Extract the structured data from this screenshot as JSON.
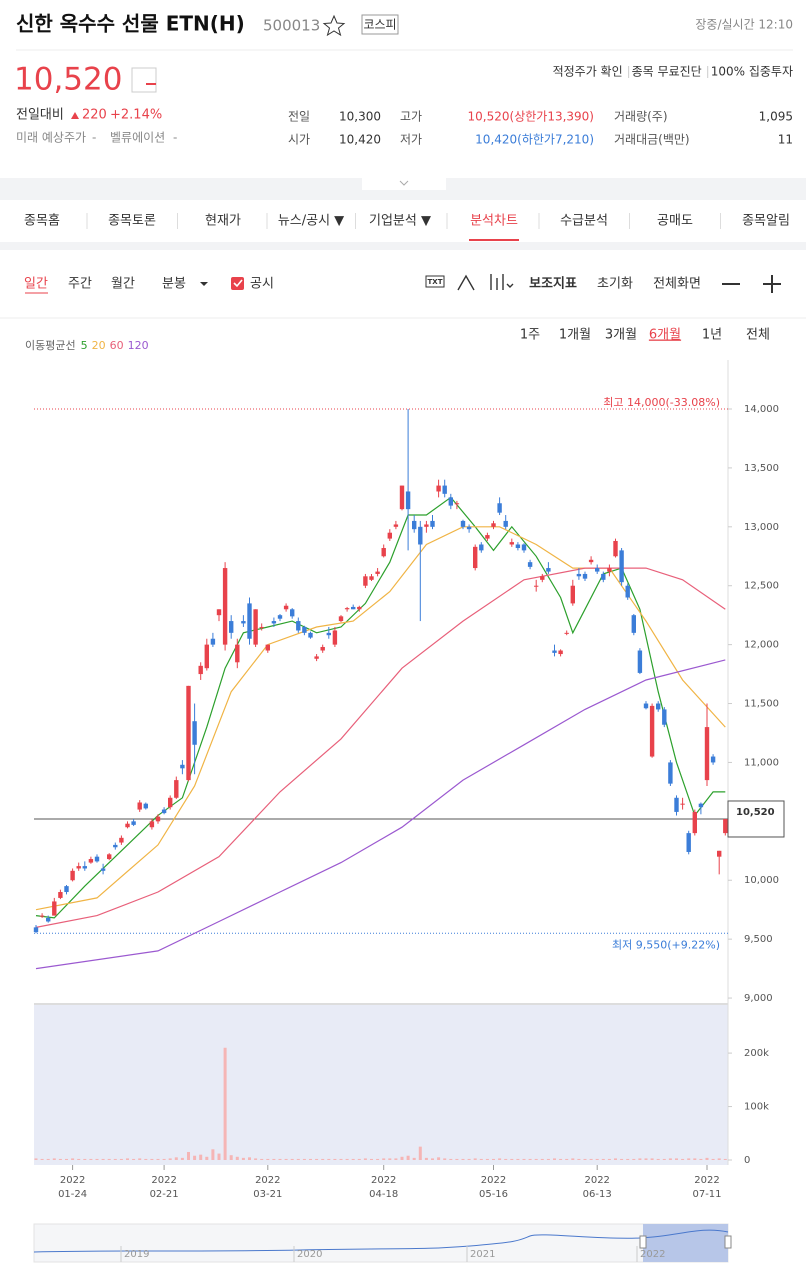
{
  "header": {
    "title": "신한 옥수수 선물 ETN(H)",
    "code": "500013",
    "market": "코스피",
    "status": "장중/실시간 12:10"
  },
  "quote": {
    "price": "10,520",
    "links": [
      "적정주가 확인",
      "종목 무료진단",
      "100% 집중투자"
    ],
    "change_label": "전일대비",
    "change": "220",
    "change_pct": "+2.14%",
    "future_label": "미래 예상주가",
    "future_value": "-",
    "valuation_label": "벨류에이션",
    "valuation_value": "-",
    "table": [
      [
        "전일",
        "10,300",
        "고가",
        "10,520(상한가13,390)",
        "거래량(주)",
        "1,095"
      ],
      [
        "시가",
        "10,420",
        "저가",
        "10,420(하한가7,210)",
        "거래대금(백만)",
        "11"
      ]
    ]
  },
  "tabs": [
    "종목홈",
    "종목토론",
    "현재가",
    "뉴스/공시 ▼",
    "기업분석 ▼",
    "분석차트",
    "수급분석",
    "공매도",
    "종목알림"
  ],
  "toolbar": {
    "left": [
      "일간",
      "주간",
      "월간",
      "분봉"
    ],
    "notice": "공시",
    "right": [
      "보조지표",
      "초기화",
      "전체화면"
    ]
  },
  "periods": [
    "1주",
    "1개월",
    "3개월",
    "6개월",
    "1년",
    "전체"
  ],
  "nav_years": [
    "2019",
    "2020",
    "2021",
    "2022"
  ],
  "chart_data": {
    "type": "candlestick",
    "ma_label": "이동평균선",
    "candles": [
      [
        9600,
        9620,
        9550,
        9560
      ],
      [
        9700,
        9720,
        9680,
        9700
      ],
      [
        9680,
        9700,
        9640,
        9650
      ],
      [
        9700,
        9850,
        9700,
        9820
      ],
      [
        9850,
        9920,
        9840,
        9900
      ],
      [
        9950,
        9960,
        9880,
        9900
      ],
      [
        10000,
        10100,
        9990,
        10080
      ],
      [
        10100,
        10150,
        10080,
        10120
      ],
      [
        10120,
        10160,
        10080,
        10100
      ],
      [
        10150,
        10200,
        10140,
        10180
      ],
      [
        10200,
        10220,
        10150,
        10160
      ],
      [
        10100,
        10140,
        10050,
        10080
      ],
      [
        10180,
        10230,
        10170,
        10220
      ],
      [
        10300,
        10320,
        10260,
        10280
      ],
      [
        10320,
        10380,
        10300,
        10360
      ],
      [
        10450,
        10500,
        10440,
        10480
      ],
      [
        10500,
        10520,
        10460,
        10470
      ],
      [
        10600,
        10680,
        10580,
        10660
      ],
      [
        10650,
        10660,
        10600,
        10610
      ],
      [
        10450,
        10520,
        10430,
        10500
      ],
      [
        10500,
        10560,
        10480,
        10540
      ],
      [
        10600,
        10620,
        10560,
        10570
      ],
      [
        10620,
        10720,
        10600,
        10700
      ],
      [
        10700,
        10880,
        10690,
        10850
      ],
      [
        10980,
        11020,
        10900,
        10950
      ],
      [
        10850,
        11650,
        10840,
        11650
      ],
      [
        11350,
        11500,
        10900,
        11150
      ],
      [
        11750,
        11850,
        11700,
        11820
      ],
      [
        11800,
        12050,
        11780,
        12000
      ],
      [
        12050,
        12100,
        11980,
        12000
      ],
      [
        12250,
        12300,
        12200,
        12300
      ],
      [
        12000,
        12700,
        11950,
        12650
      ],
      [
        12200,
        12250,
        12050,
        12100
      ],
      [
        11850,
        12050,
        11800,
        12000
      ],
      [
        12200,
        12250,
        12150,
        12180
      ],
      [
        12350,
        12400,
        12000,
        12050
      ],
      [
        12000,
        12300,
        11980,
        12300
      ],
      [
        12150,
        12180,
        12120,
        12150
      ],
      [
        11950,
        12000,
        11930,
        12000
      ],
      [
        12200,
        12230,
        12150,
        12180
      ],
      [
        12250,
        12260,
        12200,
        12220
      ],
      [
        12300,
        12350,
        12280,
        12330
      ],
      [
        12300,
        12310,
        12220,
        12240
      ],
      [
        12200,
        12230,
        12100,
        12120
      ],
      [
        12150,
        12160,
        12080,
        12100
      ],
      [
        12100,
        12110,
        12050,
        12060
      ],
      [
        11880,
        11920,
        11860,
        11900
      ],
      [
        11950,
        12000,
        11930,
        11980
      ],
      [
        12100,
        12150,
        12050,
        12080
      ],
      [
        12000,
        12150,
        11980,
        12120
      ],
      [
        12200,
        12250,
        12190,
        12240
      ],
      [
        12300,
        12320,
        12280,
        12310
      ],
      [
        12320,
        12340,
        12300,
        12300
      ],
      [
        12300,
        12330,
        12280,
        12320
      ],
      [
        12500,
        12600,
        12480,
        12580
      ],
      [
        12550,
        12600,
        12540,
        12580
      ],
      [
        12600,
        12650,
        12580,
        12620
      ],
      [
        12750,
        12850,
        12740,
        12820
      ],
      [
        12900,
        12980,
        12880,
        12950
      ],
      [
        13000,
        13050,
        12980,
        13020
      ],
      [
        13150,
        13350,
        13140,
        13350
      ],
      [
        13300,
        14000,
        12800,
        13150
      ],
      [
        13050,
        13100,
        12950,
        12980
      ],
      [
        13000,
        13050,
        12200,
        12850
      ],
      [
        13000,
        13050,
        12950,
        13020
      ],
      [
        13050,
        13100,
        12980,
        13000
      ],
      [
        13300,
        13400,
        13250,
        13350
      ],
      [
        13350,
        13400,
        13250,
        13280
      ],
      [
        13250,
        13280,
        13150,
        13180
      ],
      [
        13200,
        13220,
        13150,
        13200
      ],
      [
        13050,
        13060,
        12980,
        13000
      ],
      [
        13000,
        13020,
        12950,
        12980
      ],
      [
        12650,
        12850,
        12630,
        12830
      ],
      [
        12850,
        12870,
        12780,
        12800
      ],
      [
        12900,
        12950,
        12880,
        12930
      ],
      [
        13000,
        13050,
        12980,
        13030
      ],
      [
        13200,
        13250,
        13100,
        13120
      ],
      [
        13050,
        13100,
        12980,
        13000
      ],
      [
        12850,
        12900,
        12830,
        12870
      ],
      [
        12850,
        12870,
        12800,
        12820
      ],
      [
        12850,
        12860,
        12780,
        12800
      ],
      [
        12700,
        12720,
        12640,
        12660
      ],
      [
        12500,
        12550,
        12450,
        12500
      ],
      [
        12550,
        12600,
        12530,
        12580
      ],
      [
        12650,
        12700,
        12600,
        12620
      ],
      [
        11950,
        12000,
        11900,
        11930
      ],
      [
        11920,
        11960,
        11900,
        11950
      ],
      [
        12100,
        12120,
        12080,
        12100
      ],
      [
        12350,
        12550,
        12330,
        12500
      ],
      [
        12600,
        12650,
        12550,
        12580
      ],
      [
        12600,
        12620,
        12540,
        12560
      ],
      [
        12700,
        12750,
        12680,
        12720
      ],
      [
        12650,
        12680,
        12600,
        12620
      ],
      [
        12600,
        12620,
        12530,
        12550
      ],
      [
        12620,
        12680,
        12580,
        12650
      ],
      [
        12750,
        12900,
        12740,
        12880
      ],
      [
        12800,
        12820,
        12500,
        12530
      ],
      [
        12500,
        12520,
        12380,
        12400
      ],
      [
        12250,
        12260,
        12080,
        12100
      ],
      [
        11950,
        11970,
        11750,
        11760
      ],
      [
        11500,
        11520,
        11450,
        11460
      ],
      [
        11050,
        11500,
        11040,
        11480
      ],
      [
        11500,
        11520,
        11430,
        11450
      ],
      [
        11450,
        11470,
        11300,
        11320
      ],
      [
        11000,
        11020,
        10800,
        10820
      ],
      [
        10700,
        10720,
        10550,
        10580
      ],
      [
        10650,
        10700,
        10600,
        10650
      ],
      [
        10400,
        10420,
        10220,
        10240
      ],
      [
        10400,
        10600,
        10380,
        10580
      ],
      [
        10650,
        10660,
        10560,
        10620
      ],
      [
        10850,
        11500,
        10800,
        11300
      ],
      [
        11050,
        11070,
        10980,
        11000
      ],
      [
        10200,
        10250,
        10050,
        10250
      ],
      [
        10400,
        10520,
        10380,
        10520
      ]
    ],
    "up_color": "#e8424b",
    "down_color": "#3b7dd8",
    "series": [
      {
        "name": "5",
        "color": "#2ca02c",
        "x": [
          0,
          3,
          8,
          15,
          20,
          24,
          28,
          31,
          34,
          38,
          42,
          46,
          50,
          54,
          58,
          61,
          64,
          68,
          72,
          75,
          78,
          82,
          86,
          88,
          90,
          93,
          96,
          99,
          102,
          105,
          108,
          111,
          113
        ],
        "values": [
          9700,
          9680,
          9950,
          10300,
          10550,
          10700,
          11300,
          11800,
          12100,
          12150,
          12200,
          12100,
          12150,
          12350,
          12700,
          13100,
          13100,
          13250,
          13000,
          12800,
          13000,
          12750,
          12400,
          12100,
          12300,
          12600,
          12650,
          12300,
          11600,
          11000,
          10550,
          10750,
          10750
        ]
      },
      {
        "name": "20",
        "color": "#f0b445",
        "x": [
          0,
          10,
          20,
          26,
          32,
          38,
          46,
          52,
          58,
          64,
          70,
          76,
          82,
          88,
          94,
          100,
          106,
          113
        ],
        "values": [
          9750,
          9850,
          10300,
          10800,
          11600,
          12000,
          12150,
          12200,
          12450,
          12850,
          13000,
          13000,
          12850,
          12650,
          12650,
          12200,
          11700,
          11300
        ]
      },
      {
        "name": "60",
        "color": "#e8607a",
        "x": [
          0,
          10,
          20,
          30,
          40,
          50,
          60,
          70,
          80,
          90,
          100,
          106,
          113
        ],
        "values": [
          9600,
          9700,
          9900,
          10200,
          10750,
          11200,
          11800,
          12200,
          12550,
          12650,
          12650,
          12550,
          12300
        ]
      },
      {
        "name": "120",
        "color": "#9b59d0",
        "x": [
          0,
          20,
          30,
          40,
          50,
          60,
          70,
          80,
          90,
          100,
          113
        ],
        "values": [
          9250,
          9400,
          9650,
          9900,
          10150,
          10450,
          10850,
          11150,
          11450,
          11700,
          11870
        ]
      }
    ],
    "ylim": [
      8958,
      14416
    ],
    "yticks": [
      {
        "value": 9000,
        "label": "9,000"
      },
      {
        "value": 9500,
        "label": "9,500"
      },
      {
        "value": 10000,
        "label": "10,000"
      },
      {
        "value": 10500,
        "label": "10,500"
      },
      {
        "value": 11000,
        "label": "11,000"
      },
      {
        "value": 11500,
        "label": "11,500"
      },
      {
        "value": 12000,
        "label": "12,000"
      },
      {
        "value": 12500,
        "label": "12,500"
      },
      {
        "value": 13000,
        "label": "13,000"
      },
      {
        "value": 13500,
        "label": "13,500"
      },
      {
        "value": 14000,
        "label": "14,000"
      }
    ],
    "high": {
      "value": 14000,
      "label": "최고 14,000(-33.08%)"
    },
    "low": {
      "value": 9550,
      "label": "최저 9,550(+9.22%)"
    },
    "current": {
      "value": 10520,
      "label": "10,520"
    },
    "xticks": [
      {
        "index": 6,
        "year": "2022",
        "date": "01-24"
      },
      {
        "index": 21,
        "year": "2022",
        "date": "02-21"
      },
      {
        "index": 38,
        "year": "2022",
        "date": "03-21"
      },
      {
        "index": 57,
        "year": "2022",
        "date": "04-18"
      },
      {
        "index": 75,
        "year": "2022",
        "date": "05-16"
      },
      {
        "index": 92,
        "year": "2022",
        "date": "06-13"
      },
      {
        "index": 110,
        "year": "2022",
        "date": "07-11"
      }
    ],
    "volume": {
      "values": [
        3000,
        2000,
        2000,
        3000,
        2000,
        2000,
        3000,
        2000,
        2000,
        2000,
        2000,
        2000,
        2000,
        2000,
        2000,
        3000,
        2000,
        3000,
        2000,
        2000,
        2000,
        2000,
        3000,
        5000,
        4000,
        15000,
        8000,
        10000,
        6000,
        20000,
        12000,
        210000,
        9000,
        6000,
        4000,
        5000,
        3000,
        2000,
        2000,
        2000,
        2000,
        2000,
        2000,
        2000,
        2000,
        2000,
        2000,
        2000,
        2000,
        2000,
        2000,
        2000,
        2000,
        2000,
        3000,
        2000,
        2000,
        3000,
        3000,
        3000,
        6000,
        8000,
        4000,
        25000,
        4000,
        3000,
        5000,
        3000,
        2000,
        2000,
        2000,
        2000,
        3000,
        2000,
        2000,
        2000,
        3000,
        2000,
        2000,
        2000,
        2000,
        2000,
        2000,
        2000,
        2000,
        3000,
        2000,
        2000,
        3000,
        2000,
        2000,
        2000,
        2000,
        2000,
        2000,
        3000,
        2000,
        2000,
        2000,
        3000,
        3000,
        3000,
        2000,
        2000,
        3000,
        3000,
        2000,
        3000,
        3000,
        2000,
        4000,
        2000,
        3000,
        2000
      ],
      "color": "#f5b5b5",
      "ylim": [
        -9350,
        290000
      ],
      "yticks": [
        0,
        {
          "value": 100000,
          "label": "100k"
        },
        {
          "value": 200000,
          "label": "200k"
        }
      ]
    }
  }
}
